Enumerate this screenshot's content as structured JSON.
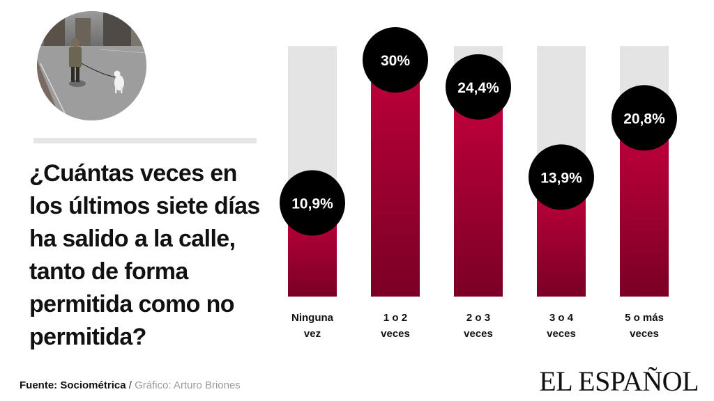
{
  "question": "¿Cuántas veces en los últimos siete días ha salido a la calle, tanto de forma permitida como no permitida?",
  "footer": {
    "source_label": "Fuente:",
    "source_name": "Sociométrica",
    "separator": "/",
    "credit": "Gráfico: Arturo Briones"
  },
  "logo_text": "EL ESPAÑOL",
  "colors": {
    "bar_fill_top": "#c4003c",
    "bar_fill_bottom": "#7a0026",
    "bar_track": "#e4e4e4",
    "bubble": "#000000",
    "bubble_text": "#ffffff"
  },
  "chart_data": {
    "type": "bar",
    "categories": [
      "Ninguna vez",
      "1 o 2 veces",
      "2 o 3 veces",
      "3 o 4 veces",
      "5 o más veces"
    ],
    "category_lines": [
      [
        "Ninguna",
        "vez"
      ],
      [
        "1 o 2",
        "veces"
      ],
      [
        "2 o 3",
        "veces"
      ],
      [
        "3 o 4",
        "veces"
      ],
      [
        "5 o más",
        "veces"
      ]
    ],
    "values": [
      10.9,
      30,
      24.4,
      13.9,
      20.8
    ],
    "value_labels": [
      "10,9%",
      "30%",
      "24,4%",
      "13,9%",
      "20,8%"
    ],
    "ylim": [
      0,
      35
    ],
    "title": "",
    "xlabel": "",
    "ylabel": "",
    "grid": false,
    "legend": "none"
  }
}
